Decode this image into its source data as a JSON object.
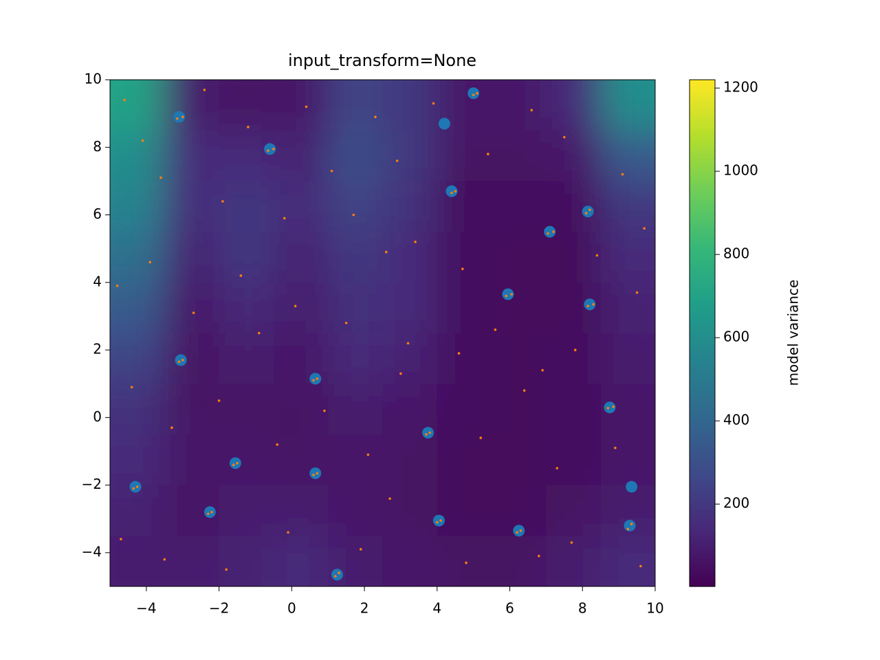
{
  "chart_data": {
    "type": "heatmap-scatter",
    "title": "input_transform=None",
    "colorbar_label": "model variance",
    "colormap": "viridis",
    "xlim": [
      -5,
      10
    ],
    "ylim": [
      -5,
      10
    ],
    "clim": [
      2,
      1220
    ],
    "xticks": [
      {
        "value": -4,
        "label": "−4"
      },
      {
        "value": -2,
        "label": "−2"
      },
      0,
      2,
      4,
      6,
      8,
      10
    ],
    "yticks": [
      {
        "value": -4,
        "label": "−4"
      },
      {
        "value": -2,
        "label": "−2"
      },
      0,
      2,
      4,
      6,
      8,
      10
    ],
    "cticks": [
      200,
      400,
      600,
      800,
      1000,
      1200
    ],
    "heatmap": {
      "x": [
        -4.25,
        -2.75,
        -1.25,
        0.25,
        1.75,
        3.25,
        4.75,
        6.25,
        7.75,
        9.25
      ],
      "y": [
        9.25,
        7.75,
        6.25,
        4.75,
        3.25,
        1.75,
        0.25,
        -1.25,
        -2.75,
        -4.25
      ],
      "z": [
        [
          700,
          100,
          60,
          80,
          250,
          200,
          80,
          80,
          150,
          600
        ],
        [
          600,
          150,
          150,
          120,
          300,
          200,
          60,
          60,
          80,
          350
        ],
        [
          550,
          150,
          200,
          150,
          250,
          180,
          40,
          40,
          40,
          200
        ],
        [
          450,
          120,
          200,
          120,
          200,
          150,
          40,
          30,
          30,
          150
        ],
        [
          350,
          80,
          150,
          100,
          180,
          150,
          40,
          30,
          30,
          120
        ],
        [
          250,
          60,
          100,
          80,
          150,
          120,
          40,
          30,
          40,
          100
        ],
        [
          180,
          60,
          60,
          60,
          100,
          80,
          40,
          30,
          40,
          80
        ],
        [
          150,
          80,
          80,
          60,
          80,
          60,
          30,
          30,
          40,
          80
        ],
        [
          120,
          60,
          100,
          100,
          80,
          60,
          30,
          30,
          60,
          100
        ],
        [
          100,
          100,
          120,
          150,
          100,
          80,
          60,
          60,
          100,
          150
        ]
      ]
    },
    "series": [
      {
        "color": "#1f77b4",
        "x": [
          -3.1,
          -0.6,
          4.2,
          5.0,
          4.4,
          8.15,
          7.1,
          5.95,
          8.2,
          -3.05,
          0.65,
          8.75,
          3.75,
          -1.55,
          0.65,
          -4.3,
          9.35,
          -2.25,
          4.05,
          6.25,
          9.3,
          1.25
        ],
        "y": [
          8.9,
          7.95,
          8.7,
          9.6,
          6.7,
          6.1,
          5.5,
          3.65,
          3.35,
          1.7,
          1.15,
          0.3,
          -0.45,
          -1.35,
          -1.65,
          -2.05,
          -2.05,
          -2.8,
          -3.05,
          -3.35,
          -3.2,
          -4.65
        ]
      },
      {
        "color": "#ff7f0e",
        "x": [
          -3.15,
          -3.0,
          -0.65,
          -0.5,
          4.4,
          4.5,
          8.1,
          8.2,
          7.05,
          7.2,
          5.9,
          6.05,
          8.15,
          8.3,
          -3.1,
          -3.0,
          0.6,
          0.7,
          8.7,
          8.85,
          3.7,
          3.8,
          -1.6,
          -1.5,
          0.6,
          0.7,
          -4.35,
          -4.25,
          -2.3,
          -2.2,
          4.0,
          4.1,
          6.2,
          6.3,
          9.25,
          9.35,
          1.2,
          1.3,
          5.0,
          5.1,
          -4.6,
          -4.1,
          -3.6,
          -2.4,
          -1.9,
          -1.2,
          -0.2,
          0.4,
          1.1,
          1.7,
          2.3,
          2.9,
          3.4,
          3.9,
          4.7,
          5.4,
          6.6,
          7.5,
          8.4,
          9.1,
          9.7,
          -4.8,
          -3.9,
          -2.7,
          -1.4,
          -0.9,
          0.1,
          1.5,
          2.6,
          3.2,
          4.6,
          5.6,
          6.9,
          7.8,
          9.5,
          -4.4,
          -3.3,
          -2.0,
          -0.4,
          0.9,
          2.1,
          3.0,
          5.2,
          6.4,
          7.3,
          8.9,
          -4.7,
          -3.5,
          -1.8,
          -0.1,
          1.9,
          2.7,
          4.8,
          6.8,
          7.7,
          9.6
        ],
        "y": [
          8.85,
          8.9,
          7.9,
          7.95,
          6.65,
          6.7,
          6.05,
          6.15,
          5.45,
          5.5,
          3.6,
          3.65,
          3.3,
          3.35,
          1.65,
          1.7,
          1.1,
          1.15,
          0.28,
          0.32,
          -0.5,
          -0.45,
          -1.4,
          -1.35,
          -1.7,
          -1.65,
          -2.1,
          -2.05,
          -2.85,
          -2.8,
          -3.1,
          -3.05,
          -3.4,
          -3.35,
          -3.3,
          -3.15,
          -4.7,
          -4.6,
          9.55,
          9.6,
          9.4,
          8.2,
          7.1,
          9.7,
          6.4,
          8.6,
          5.9,
          9.2,
          7.3,
          6.0,
          8.9,
          7.6,
          5.2,
          9.3,
          4.4,
          7.8,
          9.1,
          8.3,
          4.8,
          7.2,
          5.6,
          3.9,
          4.6,
          3.1,
          4.2,
          2.5,
          3.3,
          2.8,
          4.9,
          2.2,
          1.9,
          2.6,
          1.4,
          2.0,
          3.7,
          0.9,
          -0.3,
          0.5,
          -0.8,
          0.2,
          -1.1,
          1.3,
          -0.6,
          0.8,
          -1.5,
          -0.9,
          -3.6,
          -4.2,
          -4.5,
          -3.4,
          -3.9,
          -2.4,
          -4.3,
          -4.1,
          -3.7,
          -4.4
        ]
      }
    ]
  }
}
